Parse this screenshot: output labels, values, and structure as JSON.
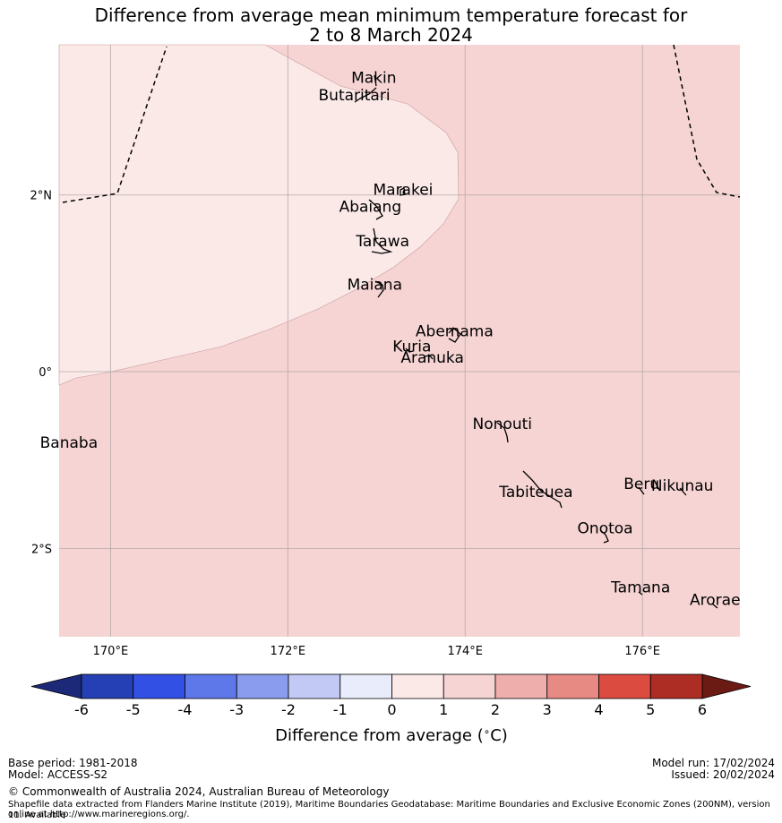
{
  "title_line1": "Difference from average mean minimum temperature forecast for",
  "title_line2": "2 to 8 March 2024",
  "map": {
    "lon_range": [
      169.42,
      177.1
    ],
    "lat_range": [
      -3.0,
      3.7
    ],
    "lon_ticks": [
      {
        "value": 170,
        "label": "170°E"
      },
      {
        "value": 172,
        "label": "172°E"
      },
      {
        "value": 174,
        "label": "174°E"
      },
      {
        "value": 176,
        "label": "176°E"
      }
    ],
    "lat_ticks": [
      {
        "value": 2,
        "label": "2°N"
      },
      {
        "value": 0,
        "label": "0°"
      },
      {
        "value": -2,
        "label": "2°S"
      }
    ],
    "background_color": "#f5d4d3",
    "region_0_1_color": "#fbe9e8",
    "places": [
      {
        "name": "Makin",
        "lon": 172.97,
        "lat": 3.27
      },
      {
        "name": "Butaritari",
        "lon": 172.75,
        "lat": 3.07
      },
      {
        "name": "Marakei",
        "lon": 173.3,
        "lat": 2.0
      },
      {
        "name": "Abaiang",
        "lon": 172.93,
        "lat": 1.81
      },
      {
        "name": "Tarawa",
        "lon": 173.07,
        "lat": 1.42
      },
      {
        "name": "Maiana",
        "lon": 172.98,
        "lat": 0.93
      },
      {
        "name": "Abemama",
        "lon": 173.88,
        "lat": 0.4
      },
      {
        "name": "Kuria",
        "lon": 173.4,
        "lat": 0.23
      },
      {
        "name": "Aranuka",
        "lon": 173.63,
        "lat": 0.1
      },
      {
        "name": "Nonouti",
        "lon": 174.42,
        "lat": -0.65
      },
      {
        "name": "Banaba",
        "lon": 169.53,
        "lat": -0.86
      },
      {
        "name": "Beru",
        "lon": 175.99,
        "lat": -1.33
      },
      {
        "name": "Tabiteuea",
        "lon": 174.8,
        "lat": -1.42
      },
      {
        "name": "Nikunau",
        "lon": 176.45,
        "lat": -1.35
      },
      {
        "name": "Onotoa",
        "lon": 175.58,
        "lat": -1.83
      },
      {
        "name": "Tamana",
        "lon": 175.98,
        "lat": -2.5
      },
      {
        "name": "Arorae",
        "lon": 176.82,
        "lat": -2.64
      }
    ]
  },
  "colorbar": {
    "ticks": [
      -6,
      -5,
      -4,
      -3,
      -2,
      -1,
      0,
      1,
      2,
      3,
      4,
      5,
      6
    ],
    "tick_labels": [
      "-6",
      "-5",
      "-4",
      "-3",
      "-2",
      "-1",
      "0",
      "1",
      "2",
      "3",
      "4",
      "5",
      "6"
    ],
    "colors": [
      "#2540b4",
      "#3350e5",
      "#5e78e9",
      "#8a9cee",
      "#c3c9f5",
      "#e8ecfb",
      "#fbe9e8",
      "#f5d4d3",
      "#edaeac",
      "#e88a84",
      "#dc4b40",
      "#ad2c23"
    ],
    "under_color": "#1c2978",
    "over_color": "#6c1a14",
    "label": "Difference from average (",
    "label_unit": "C)",
    "label_degree": "∘"
  },
  "footer": {
    "base_period": "Base period: 1981-2018",
    "model": "Model: ACCESS-S2",
    "model_run": "Model run: 17/02/2024",
    "issued": "Issued: 20/02/2024",
    "copyright": "© Commonwealth of Australia 2024, Australian Bureau of Meteorology",
    "shapefile_line1": "Shapefile data extracted from Flanders Marine Institute (2019), Maritime Boundaries Geodatabase: Maritime Boundaries and Exclusive Economic Zones (200NM), version 11. Available",
    "shapefile_line2": "online at http://www.marineregions.org/."
  }
}
